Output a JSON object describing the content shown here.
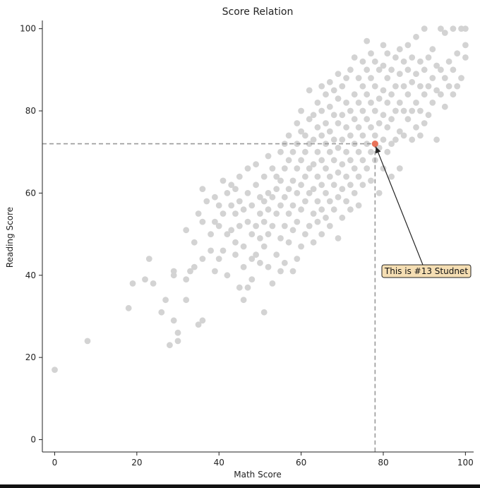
{
  "chart_data": {
    "type": "scatter",
    "title": "Score Relation",
    "xlabel": "Math Score",
    "ylabel": "Reading Score",
    "xlim": [
      -3,
      102
    ],
    "ylim": [
      -3,
      102
    ],
    "xticks": [
      0,
      20,
      40,
      60,
      80,
      100
    ],
    "yticks": [
      0,
      20,
      40,
      60,
      80,
      100
    ],
    "grid": false,
    "point_color": "#d3d3d3",
    "highlight_color": "#e8735a",
    "guide_color": "#999999",
    "note_fill": "#f5deb3",
    "points": [
      [
        0,
        17
      ],
      [
        8,
        24
      ],
      [
        18,
        32
      ],
      [
        19,
        38
      ],
      [
        22,
        39
      ],
      [
        23,
        44
      ],
      [
        24,
        38
      ],
      [
        26,
        31
      ],
      [
        27,
        34
      ],
      [
        28,
        23
      ],
      [
        29,
        29
      ],
      [
        29,
        41
      ],
      [
        29,
        40
      ],
      [
        30,
        26
      ],
      [
        30,
        24
      ],
      [
        32,
        34
      ],
      [
        32,
        39
      ],
      [
        32,
        51
      ],
      [
        33,
        41
      ],
      [
        34,
        42
      ],
      [
        34,
        48
      ],
      [
        35,
        28
      ],
      [
        35,
        55
      ],
      [
        36,
        29
      ],
      [
        36,
        44
      ],
      [
        36,
        53
      ],
      [
        36,
        61
      ],
      [
        37,
        58
      ],
      [
        38,
        46
      ],
      [
        38,
        50
      ],
      [
        39,
        41
      ],
      [
        39,
        53
      ],
      [
        39,
        59
      ],
      [
        40,
        44
      ],
      [
        40,
        52
      ],
      [
        40,
        57
      ],
      [
        41,
        46
      ],
      [
        41,
        55
      ],
      [
        41,
        63
      ],
      [
        42,
        40
      ],
      [
        42,
        50
      ],
      [
        42,
        60
      ],
      [
        43,
        51
      ],
      [
        43,
        57
      ],
      [
        43,
        62
      ],
      [
        44,
        45
      ],
      [
        44,
        48
      ],
      [
        44,
        55
      ],
      [
        44,
        61
      ],
      [
        45,
        37
      ],
      [
        45,
        52
      ],
      [
        45,
        58
      ],
      [
        45,
        64
      ],
      [
        46,
        34
      ],
      [
        46,
        42
      ],
      [
        46,
        47
      ],
      [
        46,
        56
      ],
      [
        47,
        37
      ],
      [
        47,
        53
      ],
      [
        47,
        60
      ],
      [
        47,
        66
      ],
      [
        48,
        39
      ],
      [
        48,
        44
      ],
      [
        48,
        50
      ],
      [
        48,
        57
      ],
      [
        49,
        45
      ],
      [
        49,
        52
      ],
      [
        49,
        62
      ],
      [
        49,
        67
      ],
      [
        50,
        43
      ],
      [
        50,
        49
      ],
      [
        50,
        55
      ],
      [
        50,
        59
      ],
      [
        51,
        31
      ],
      [
        51,
        47
      ],
      [
        51,
        53
      ],
      [
        51,
        58
      ],
      [
        51,
        64
      ],
      [
        52,
        42
      ],
      [
        52,
        50
      ],
      [
        52,
        56
      ],
      [
        52,
        60
      ],
      [
        52,
        69
      ],
      [
        53,
        38
      ],
      [
        53,
        52
      ],
      [
        53,
        59
      ],
      [
        53,
        66
      ],
      [
        54,
        45
      ],
      [
        54,
        55
      ],
      [
        54,
        61
      ],
      [
        54,
        64
      ],
      [
        55,
        41
      ],
      [
        55,
        49
      ],
      [
        55,
        57
      ],
      [
        55,
        63
      ],
      [
        55,
        70
      ],
      [
        56,
        43
      ],
      [
        56,
        52
      ],
      [
        56,
        59
      ],
      [
        56,
        66
      ],
      [
        56,
        72
      ],
      [
        57,
        48
      ],
      [
        57,
        55
      ],
      [
        57,
        61
      ],
      [
        57,
        68
      ],
      [
        57,
        74
      ],
      [
        58,
        41
      ],
      [
        58,
        51
      ],
      [
        58,
        57
      ],
      [
        58,
        63
      ],
      [
        58,
        70
      ],
      [
        59,
        44
      ],
      [
        59,
        53
      ],
      [
        59,
        60
      ],
      [
        59,
        66
      ],
      [
        59,
        72
      ],
      [
        59,
        77
      ],
      [
        60,
        47
      ],
      [
        60,
        56
      ],
      [
        60,
        62
      ],
      [
        60,
        68
      ],
      [
        60,
        75
      ],
      [
        60,
        80
      ],
      [
        61,
        50
      ],
      [
        61,
        58
      ],
      [
        61,
        64
      ],
      [
        61,
        70
      ],
      [
        61,
        74
      ],
      [
        62,
        52
      ],
      [
        62,
        60
      ],
      [
        62,
        66
      ],
      [
        62,
        72
      ],
      [
        62,
        78
      ],
      [
        62,
        85
      ],
      [
        63,
        48
      ],
      [
        63,
        55
      ],
      [
        63,
        61
      ],
      [
        63,
        67
      ],
      [
        63,
        73
      ],
      [
        63,
        79
      ],
      [
        64,
        53
      ],
      [
        64,
        58
      ],
      [
        64,
        64
      ],
      [
        64,
        70
      ],
      [
        64,
        76
      ],
      [
        64,
        82
      ],
      [
        65,
        50
      ],
      [
        65,
        56
      ],
      [
        65,
        62
      ],
      [
        65,
        68
      ],
      [
        65,
        74
      ],
      [
        65,
        80
      ],
      [
        65,
        86
      ],
      [
        66,
        54
      ],
      [
        66,
        60
      ],
      [
        66,
        66
      ],
      [
        66,
        72
      ],
      [
        66,
        77
      ],
      [
        66,
        84
      ],
      [
        67,
        52
      ],
      [
        67,
        58
      ],
      [
        67,
        64
      ],
      [
        67,
        70
      ],
      [
        67,
        75
      ],
      [
        67,
        81
      ],
      [
        67,
        87
      ],
      [
        68,
        56
      ],
      [
        68,
        62
      ],
      [
        68,
        68
      ],
      [
        68,
        73
      ],
      [
        68,
        79
      ],
      [
        68,
        85
      ],
      [
        69,
        49
      ],
      [
        69,
        59
      ],
      [
        69,
        65
      ],
      [
        69,
        71
      ],
      [
        69,
        77
      ],
      [
        69,
        83
      ],
      [
        69,
        89
      ],
      [
        70,
        54
      ],
      [
        70,
        61
      ],
      [
        70,
        67
      ],
      [
        70,
        73
      ],
      [
        70,
        79
      ],
      [
        70,
        86
      ],
      [
        71,
        58
      ],
      [
        71,
        64
      ],
      [
        71,
        70
      ],
      [
        71,
        76
      ],
      [
        71,
        82
      ],
      [
        71,
        88
      ],
      [
        72,
        56
      ],
      [
        72,
        62
      ],
      [
        72,
        68
      ],
      [
        72,
        74
      ],
      [
        72,
        80
      ],
      [
        72,
        90
      ],
      [
        73,
        60
      ],
      [
        73,
        66
      ],
      [
        73,
        72
      ],
      [
        73,
        78
      ],
      [
        73,
        84
      ],
      [
        73,
        93
      ],
      [
        74,
        57
      ],
      [
        74,
        64
      ],
      [
        74,
        70
      ],
      [
        74,
        76
      ],
      [
        74,
        82
      ],
      [
        74,
        88
      ],
      [
        75,
        62
      ],
      [
        75,
        68
      ],
      [
        75,
        74
      ],
      [
        75,
        80
      ],
      [
        75,
        86
      ],
      [
        75,
        92
      ],
      [
        76,
        66
      ],
      [
        76,
        72
      ],
      [
        76,
        78
      ],
      [
        76,
        84
      ],
      [
        76,
        90
      ],
      [
        76,
        97
      ],
      [
        77,
        63
      ],
      [
        77,
        70
      ],
      [
        77,
        76
      ],
      [
        77,
        82
      ],
      [
        77,
        88
      ],
      [
        77,
        94
      ],
      [
        78,
        68
      ],
      [
        78,
        74
      ],
      [
        78,
        80
      ],
      [
        78,
        86
      ],
      [
        78,
        92
      ],
      [
        79,
        60
      ],
      [
        79,
        71
      ],
      [
        79,
        77
      ],
      [
        79,
        83
      ],
      [
        79,
        90
      ],
      [
        80,
        66
      ],
      [
        80,
        73
      ],
      [
        80,
        79
      ],
      [
        80,
        85
      ],
      [
        80,
        91
      ],
      [
        80,
        96
      ],
      [
        81,
        70
      ],
      [
        81,
        76
      ],
      [
        81,
        82
      ],
      [
        81,
        88
      ],
      [
        81,
        94
      ],
      [
        82,
        64
      ],
      [
        82,
        72
      ],
      [
        82,
        78
      ],
      [
        82,
        84
      ],
      [
        82,
        90
      ],
      [
        83,
        73
      ],
      [
        83,
        80
      ],
      [
        83,
        86
      ],
      [
        83,
        93
      ],
      [
        84,
        66
      ],
      [
        84,
        75
      ],
      [
        84,
        82
      ],
      [
        84,
        89
      ],
      [
        84,
        95
      ],
      [
        85,
        74
      ],
      [
        85,
        80
      ],
      [
        85,
        86
      ],
      [
        85,
        92
      ],
      [
        86,
        78
      ],
      [
        86,
        84
      ],
      [
        86,
        90
      ],
      [
        86,
        96
      ],
      [
        87,
        73
      ],
      [
        87,
        80
      ],
      [
        87,
        87
      ],
      [
        87,
        93
      ],
      [
        88,
        76
      ],
      [
        88,
        82
      ],
      [
        88,
        89
      ],
      [
        88,
        98
      ],
      [
        89,
        74
      ],
      [
        89,
        80
      ],
      [
        89,
        86
      ],
      [
        89,
        92
      ],
      [
        90,
        77
      ],
      [
        90,
        84
      ],
      [
        90,
        90
      ],
      [
        90,
        100
      ],
      [
        91,
        79
      ],
      [
        91,
        86
      ],
      [
        91,
        93
      ],
      [
        92,
        82
      ],
      [
        92,
        88
      ],
      [
        92,
        95
      ],
      [
        93,
        73
      ],
      [
        93,
        85
      ],
      [
        93,
        91
      ],
      [
        94,
        84
      ],
      [
        94,
        90
      ],
      [
        94,
        100
      ],
      [
        95,
        81
      ],
      [
        95,
        88
      ],
      [
        95,
        99
      ],
      [
        96,
        86
      ],
      [
        96,
        92
      ],
      [
        97,
        84
      ],
      [
        97,
        90
      ],
      [
        97,
        100
      ],
      [
        98,
        86
      ],
      [
        98,
        94
      ],
      [
        99,
        88
      ],
      [
        99,
        100
      ],
      [
        100,
        93
      ],
      [
        100,
        96
      ],
      [
        100,
        100
      ]
    ],
    "highlight": {
      "x": 78,
      "y": 72
    },
    "annotation": {
      "text": "This is #13 Studnet",
      "x": 80,
      "y": 41
    }
  }
}
